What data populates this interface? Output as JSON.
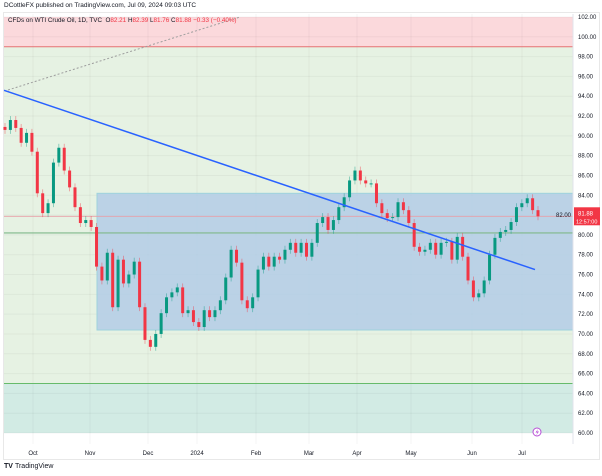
{
  "header": {
    "publisher_line": "DCottleFX published on TradingView.com, Jul 09, 2024 09:03 UTC"
  },
  "legend": {
    "symbol": "CFDs on WTI Crude Oil, 1D, TVC",
    "open_label": "O",
    "open": "82.21",
    "high_label": "H",
    "high": "82.39",
    "low_label": "L",
    "low": "81.76",
    "close_label": "C",
    "close": "81.88",
    "change": "−0.33 (−0.40%)"
  },
  "price_label": {
    "price": "81.88",
    "countdown": "12:57:00",
    "color": "#f23645"
  },
  "footer": {
    "logo_text": "TradingView",
    "logo_mark": "TV"
  },
  "colors": {
    "up": "#089981",
    "down": "#f23645",
    "trendline": "#2962ff",
    "zone_red": "#fbd9dc",
    "zone_green": "#e6f2e3",
    "zone_teal": "#d2ebe4",
    "rect": "#b3cde6"
  },
  "chart_data": {
    "type": "candlestick",
    "title": "CFDs on WTI Crude Oil, 1D, TVC",
    "ylim": [
      60,
      102
    ],
    "y_ticks": [
      "102.00",
      "100.00",
      "98.00",
      "96.00",
      "94.00",
      "92.00",
      "90.00",
      "88.00",
      "86.00",
      "84.00",
      "82.00",
      "80.00",
      "78.00",
      "76.00",
      "74.00",
      "72.00",
      "70.00",
      "68.00",
      "66.00",
      "64.00",
      "62.00",
      "60.00"
    ],
    "x_ticks": [
      "Oct",
      "Nov",
      "Dec",
      "2024",
      "Feb",
      "Mar",
      "Apr",
      "May",
      "Jun",
      "Jul"
    ],
    "closes": [
      90.6,
      91.6,
      90.8,
      89.3,
      90.3,
      88.4,
      84.2,
      82.2,
      83.2,
      87.3,
      88.8,
      86.5,
      84.8,
      82.8,
      81.2,
      81.5,
      80.8,
      76.8,
      75.4,
      78.2,
      72.7,
      77.5,
      75.1,
      76.0,
      77.3,
      72.7,
      69.4,
      68.7,
      70.0,
      72.1,
      73.7,
      74.2,
      74.7,
      72.1,
      72.4,
      71.2,
      70.7,
      72.4,
      71.7,
      72.4,
      73.4,
      75.7,
      78.5,
      77.2,
      73.4,
      72.6,
      73.7,
      76.5,
      77.8,
      76.8,
      77.8,
      77.5,
      78.5,
      79.2,
      78.2,
      79.2,
      77.8,
      79.2,
      81.2,
      81.8,
      80.5,
      81.5,
      82.8,
      83.8,
      85.5,
      86.5,
      85.5,
      85.2,
      85.2,
      83.2,
      82.2,
      81.7,
      81.8,
      83.3,
      82.5,
      81.2,
      78.8,
      78.3,
      78.5,
      79.2,
      78.0,
      79.2,
      79.3,
      77.5,
      79.8,
      77.8,
      75.4,
      73.7,
      74.1,
      75.4,
      78.0,
      79.7,
      80.3,
      80.5,
      81.3,
      82.8,
      83.2,
      83.7,
      82.5,
      81.88
    ],
    "zones": [
      {
        "from": 99,
        "to": 102,
        "color": "red"
      },
      {
        "from": 65,
        "to": 99,
        "color": "green"
      },
      {
        "from": 60,
        "to": 65,
        "color": "teal"
      }
    ],
    "range_box": {
      "top": 84.2,
      "bottom": 70.4
    },
    "horizontal_levels": [
      99,
      80.2,
      65,
      81.88
    ],
    "trendline": {
      "start_price": 94.6,
      "end_price": 76.5
    }
  }
}
